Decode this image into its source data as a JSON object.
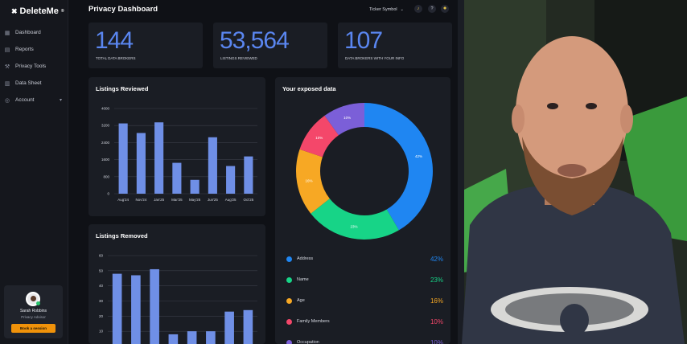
{
  "app": {
    "logo_text": "DeleteMe",
    "page_title": "Privacy Dashboard",
    "ticker_label": "Ticker Symbol"
  },
  "sidebar": {
    "items": [
      {
        "label": "Dashboard",
        "icon": "grid-icon"
      },
      {
        "label": "Reports",
        "icon": "document-icon"
      },
      {
        "label": "Privacy Tools",
        "icon": "wrench-icon"
      },
      {
        "label": "Data Sheet",
        "icon": "sheet-icon"
      },
      {
        "label": "Account",
        "icon": "user-icon"
      }
    ],
    "user": {
      "name": "Sarah Robbins",
      "role": "Privacy Advisor",
      "button": "Book a session"
    }
  },
  "stats": [
    {
      "value": "144",
      "label": "Total data brokers"
    },
    {
      "value": "53,564",
      "label": "Listings reviewed"
    },
    {
      "value": "107",
      "label": "Data brokers with your info"
    }
  ],
  "panels": {
    "listings_reviewed_title": "Listings Reviewed",
    "listings_removed_title": "Listings Removed",
    "exposed_title": "Your exposed data"
  },
  "colors": {
    "accent": "#5a86f0",
    "bar": "#6f8fe6",
    "brand_orange": "#f0920a"
  },
  "chart_data": [
    {
      "type": "bar",
      "title": "Listings Reviewed",
      "categories": [
        "Aug'24",
        "Nov'24",
        "Jan'25",
        "Mar'25",
        "May'25",
        "Jun'25",
        "Aug'25",
        "Oct'25"
      ],
      "bar_values": [
        3300,
        2850,
        3350,
        1450,
        650,
        2650,
        1300,
        1750
      ],
      "yticks": [
        0,
        800,
        1600,
        2400,
        3200,
        4000
      ],
      "ytick_labels": [
        "0",
        "800",
        "1600",
        "2400",
        "3200",
        "4000"
      ],
      "ylim": [
        0,
        4000
      ]
    },
    {
      "type": "bar",
      "title": "Listings Removed",
      "bar_values": [
        48,
        47,
        51,
        8,
        10,
        10,
        23,
        24
      ],
      "yticks": [
        0,
        10,
        20,
        30,
        40,
        50,
        60
      ],
      "ytick_labels": [
        "0",
        "10",
        "20",
        "30",
        "40",
        "50",
        "60"
      ],
      "ylim": [
        0,
        60
      ]
    },
    {
      "type": "pie",
      "title": "Your exposed data",
      "slices": [
        {
          "name": "Address",
          "value": 42,
          "label": "42%",
          "color": "#1f86f2"
        },
        {
          "name": "Name",
          "value": 23,
          "label": "23%",
          "color": "#17d487"
        },
        {
          "name": "Age",
          "value": 16,
          "label": "16%",
          "color": "#f7a824"
        },
        {
          "name": "Family Members",
          "value": 10,
          "label": "10%",
          "color": "#f4476a"
        },
        {
          "name": "Occupation",
          "value": 10,
          "label": "10%",
          "color": "#7b5fd8"
        }
      ]
    }
  ]
}
